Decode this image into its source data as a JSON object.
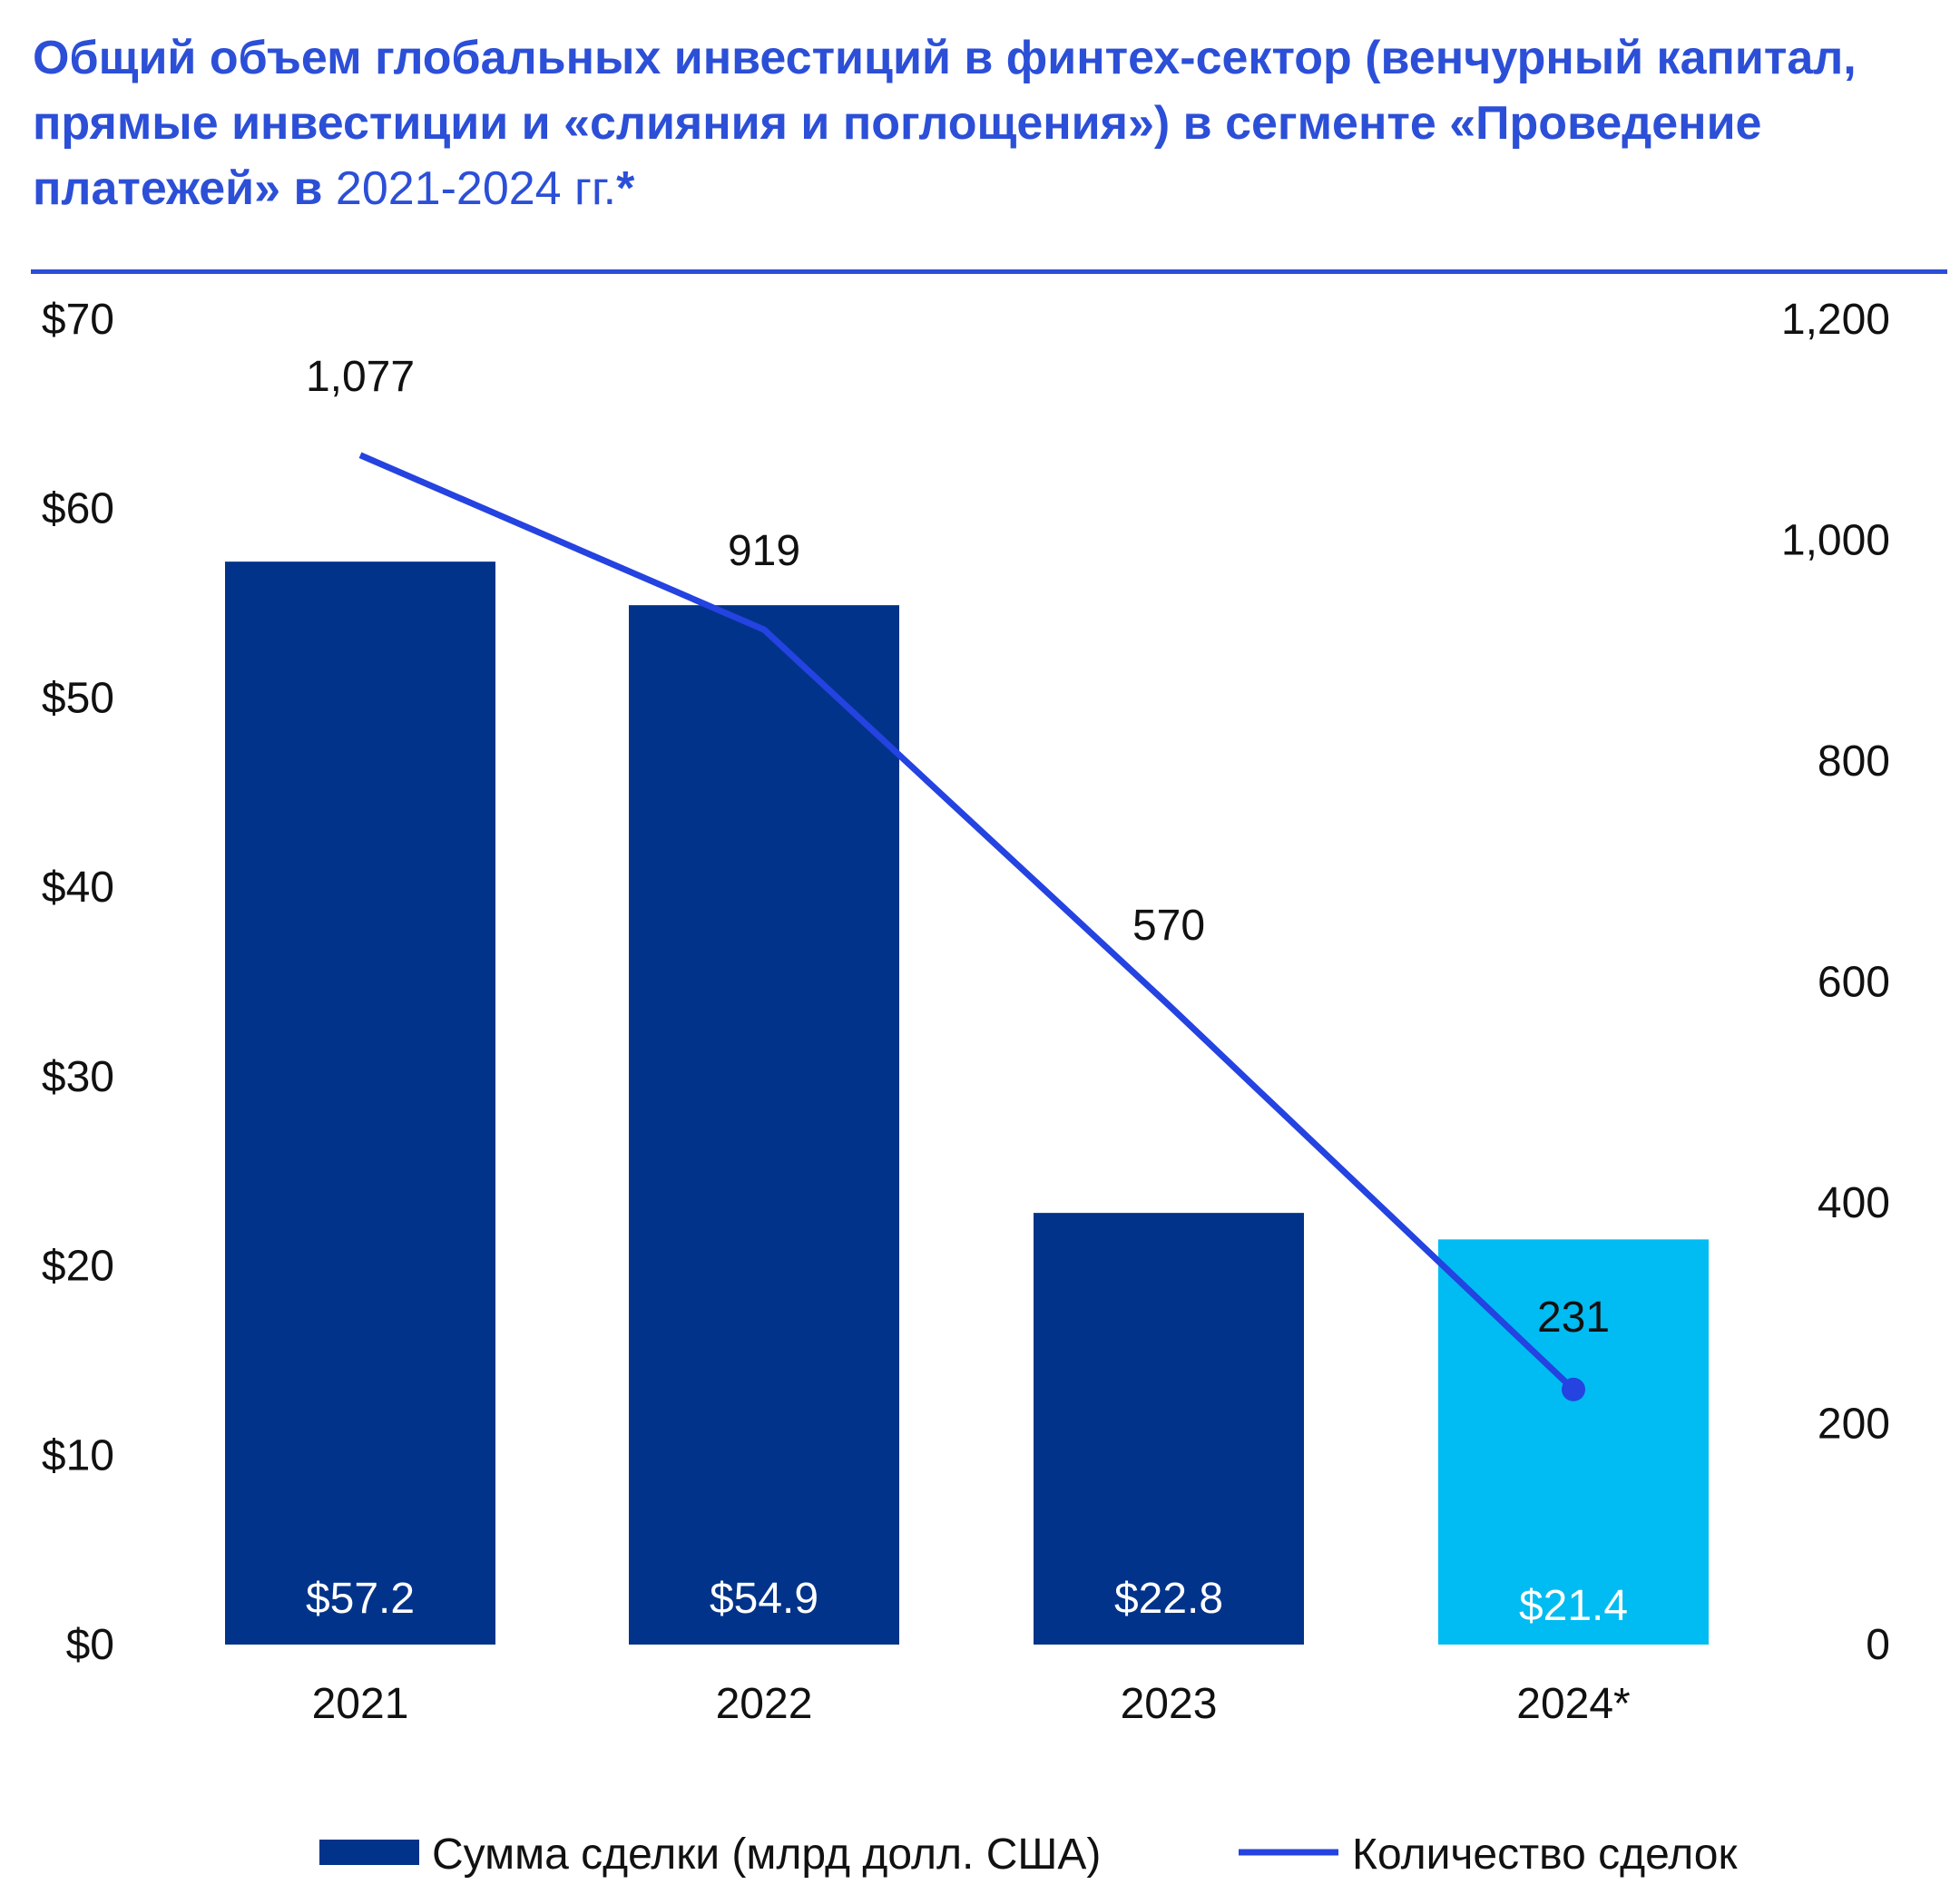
{
  "title": {
    "bold": "Общий объем глобальных инвестиций в финтех-сектор (венчурный капитал, прямые инвестиции и «слияния и поглощения») в сегменте «Проведение платежей» в",
    "regular": "2021-2024 гг.",
    "suffix": "*"
  },
  "colors": {
    "accent": "#2c4fd7",
    "bar": "#02338a",
    "bar_highlight": "#00bcf2",
    "line": "#2443e0"
  },
  "chart_data": {
    "type": "bar",
    "categories": [
      "2021",
      "2022",
      "2023",
      "2024*"
    ],
    "series": [
      {
        "name": "Сумма сделки (млрд долл. США)",
        "type": "bar",
        "axis": "left",
        "values": [
          57.2,
          54.9,
          22.8,
          21.4
        ],
        "labels": [
          "$57.2",
          "$54.9",
          "$22.8",
          "$21.4"
        ]
      },
      {
        "name": "Количество сделок",
        "type": "line",
        "axis": "right",
        "values": [
          1077,
          919,
          570,
          231
        ],
        "labels": [
          "1,077",
          "919",
          "570",
          "231"
        ]
      }
    ],
    "y_left": {
      "ylim": [
        0,
        70
      ],
      "ticks": [
        "$0",
        "$10",
        "$20",
        "$30",
        "$40",
        "$50",
        "$60",
        "$70"
      ]
    },
    "y_right": {
      "ylim": [
        0,
        1200
      ],
      "ticks": [
        "0",
        "200",
        "400",
        "600",
        "800",
        "1,000",
        "1,200"
      ]
    },
    "highlight_category": "2024*",
    "grid": false,
    "legend_position": "bottom"
  }
}
